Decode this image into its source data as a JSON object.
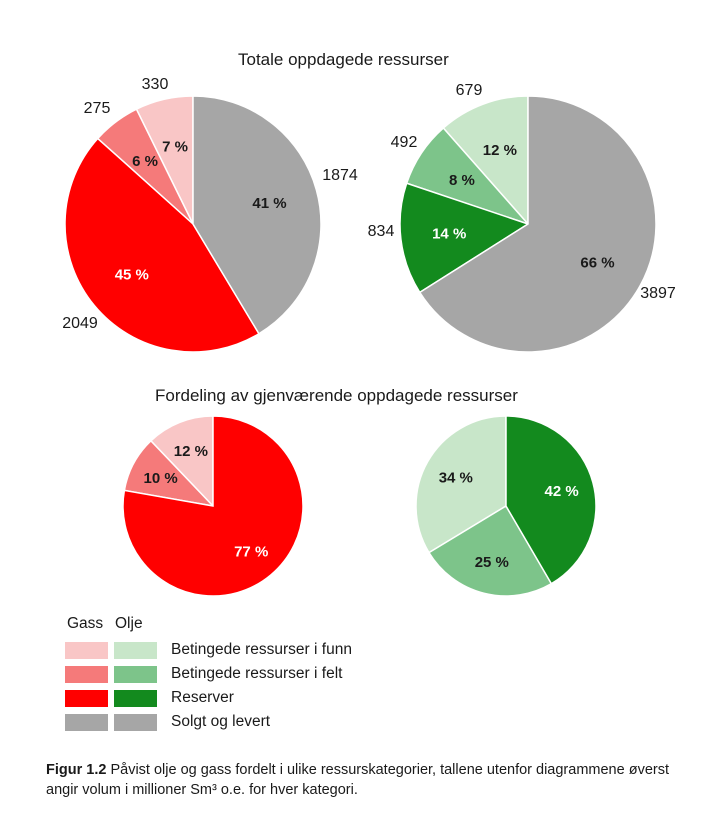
{
  "titles": {
    "top": "Totale oppdagede ressurser",
    "bottom": "Fordeling av gjenværende oppdagede ressurser"
  },
  "colors": {
    "gass": [
      "#f9c6c6",
      "#f57a7a",
      "#ff0000",
      "#a6a6a6"
    ],
    "olje": [
      "#c8e6c9",
      "#7dc48a",
      "#138a1e",
      "#a6a6a6"
    ]
  },
  "chart_data": [
    {
      "type": "pie",
      "name": "Gass – totale oppdagede ressurser",
      "categories": [
        "Betingede ressurser i funn",
        "Betingede ressurser i felt",
        "Reserver",
        "Solgt og levert"
      ],
      "values": [
        330,
        275,
        2049,
        1874
      ],
      "percent_labels": [
        "7 %",
        "6 %",
        "45 %",
        "41 %"
      ],
      "volume_labels": [
        "330",
        "275",
        "2049",
        "1874"
      ]
    },
    {
      "type": "pie",
      "name": "Olje – totale oppdagede ressurser",
      "categories": [
        "Betingede ressurser i funn",
        "Betingede ressurser i felt",
        "Reserver",
        "Solgt og levert"
      ],
      "values": [
        679,
        492,
        834,
        3897
      ],
      "percent_labels": [
        "12 %",
        "8 %",
        "14 %",
        "66 %"
      ],
      "volume_labels": [
        "679",
        "492",
        "834",
        "3897"
      ]
    },
    {
      "type": "pie",
      "name": "Gass – gjenværende oppdagede ressurser",
      "categories": [
        "Betingede ressurser i funn",
        "Betingede ressurser i felt",
        "Reserver"
      ],
      "values": [
        12,
        10,
        77
      ],
      "percent_labels": [
        "12 %",
        "10 %",
        "77 %"
      ]
    },
    {
      "type": "pie",
      "name": "Olje – gjenværende oppdagede ressurser",
      "categories": [
        "Betingede ressurser i funn",
        "Betingede ressurser i felt",
        "Reserver"
      ],
      "values": [
        34,
        25,
        42
      ],
      "percent_labels": [
        "34 %",
        "25 %",
        "42 %"
      ]
    }
  ],
  "legend": {
    "header_gass": "Gass",
    "header_olje": "Olje",
    "items": [
      {
        "label": "Betingede ressurser i funn"
      },
      {
        "label": "Betingede ressurser i felt"
      },
      {
        "label": "Reserver"
      },
      {
        "label": "Solgt og levert"
      }
    ]
  },
  "caption": {
    "label": "Figur 1.2",
    "text": " Påvist olje og gass fordelt i ulike ressurskategorier, tallene utenfor diagrammene øverst angir volum i millioner Sm³ o.e. for hver kategori."
  }
}
